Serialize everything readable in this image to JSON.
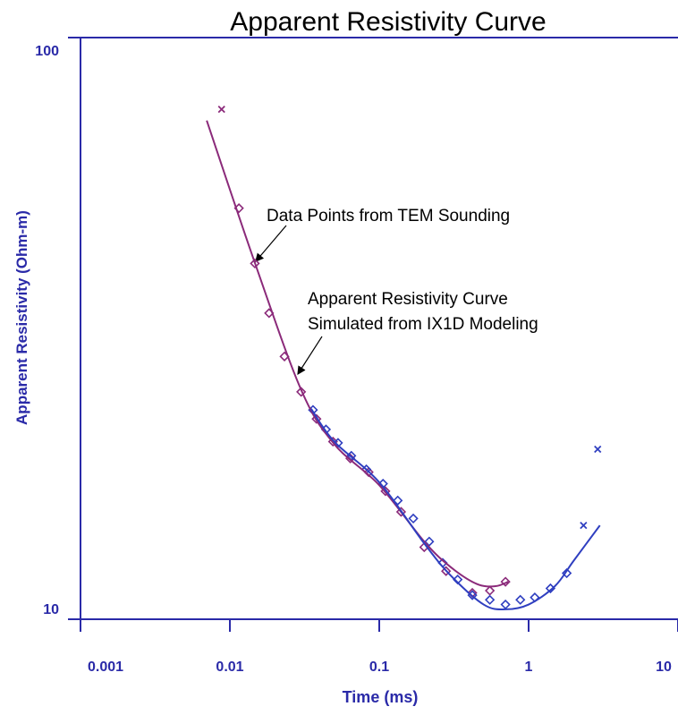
{
  "chart_data": {
    "type": "scatter",
    "title": "Apparent Resistivity Curve",
    "xlabel": "Time (ms)",
    "ylabel": "Apparent Resistivity (Ohm-m)",
    "xscale": "log",
    "yscale": "log",
    "xlim": [
      0.001,
      10
    ],
    "ylim": [
      10,
      100
    ],
    "xticks": [
      0.001,
      0.01,
      0.1,
      1,
      10
    ],
    "yticks": [
      10,
      100
    ],
    "annotations": [
      "Data Points from TEM Sounding",
      "Apparent Resistivity Curve",
      "Simulated from IX1D Modeling"
    ],
    "series": [
      {
        "color": "#8b2a7a",
        "marker": "cross",
        "x": [
          0.0088
        ],
        "values": [
          75.3
        ]
      },
      {
        "color": "#8b2a7a",
        "marker": "diamond",
        "x": [
          0.0115,
          0.0147,
          0.0183,
          0.0232,
          0.03,
          0.038,
          0.049,
          0.064,
          0.085,
          0.11,
          0.14,
          0.2,
          0.28,
          0.42,
          0.55,
          0.7
        ],
        "values": [
          50.9,
          40.9,
          33.6,
          28.3,
          24.6,
          22.1,
          20.2,
          18.9,
          17.9,
          16.6,
          15.3,
          13.3,
          12.1,
          11.1,
          11.2,
          11.6
        ]
      },
      {
        "color": "#2f3fc0",
        "marker": "diamond",
        "x": [
          0.036,
          0.044,
          0.053,
          0.065,
          0.082,
          0.106,
          0.133,
          0.169,
          0.216,
          0.266,
          0.335,
          0.42,
          0.55,
          0.7,
          0.88,
          1.1,
          1.4,
          1.8
        ],
        "values": [
          22.9,
          21.2,
          20.1,
          19.1,
          18.1,
          17.1,
          16.0,
          14.9,
          13.6,
          12.5,
          11.7,
          11.0,
          10.8,
          10.6,
          10.8,
          10.9,
          11.3,
          12.0
        ]
      },
      {
        "color": "#2f3fc0",
        "marker": "cross",
        "x": [
          2.33,
          2.9
        ],
        "values": [
          14.5,
          19.6
        ]
      },
      {
        "color": "#8b2a7a",
        "marker": "line",
        "x": [
          0.007,
          0.0147,
          0.03,
          0.05,
          0.1,
          0.2,
          0.3,
          0.45,
          0.6,
          0.73
        ],
        "values": [
          72,
          41,
          24.8,
          20.0,
          17.0,
          13.6,
          12.3,
          11.5,
          11.4,
          11.6
        ]
      },
      {
        "color": "#2f3fc0",
        "marker": "line",
        "x": [
          0.035,
          0.05,
          0.1,
          0.2,
          0.3,
          0.5,
          0.7,
          1,
          1.5,
          2,
          3
        ],
        "values": [
          23,
          20.2,
          17.2,
          13.5,
          11.9,
          10.6,
          10.4,
          10.6,
          11.4,
          12.6,
          14.5
        ]
      }
    ]
  }
}
